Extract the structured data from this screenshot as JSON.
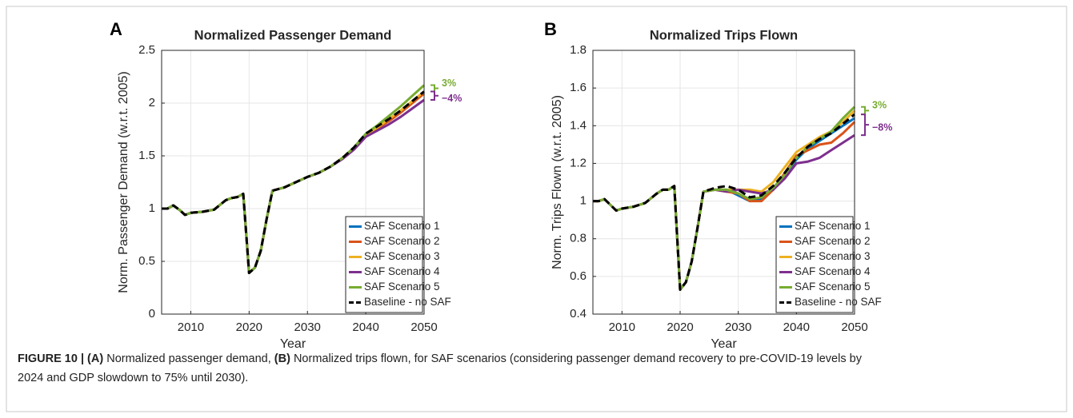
{
  "chart_data": [
    {
      "type": "line",
      "panel": "A",
      "title": "Normalized Passenger Demand",
      "xlabel": "Year",
      "ylabel": "Norm. Passenger Demand (w.r.t. 2005)",
      "x": [
        2005,
        2006,
        2007,
        2008,
        2009,
        2010,
        2012,
        2014,
        2016,
        2017,
        2018,
        2019,
        2020,
        2021,
        2022,
        2023,
        2024,
        2026,
        2028,
        2030,
        2032,
        2034,
        2036,
        2038,
        2040,
        2042,
        2044,
        2046,
        2048,
        2050
      ],
      "xlim": [
        2005,
        2050
      ],
      "xticks": [
        2010,
        2020,
        2030,
        2040,
        2050
      ],
      "ylim": [
        0,
        2.5
      ],
      "yticks": [
        0,
        0.5,
        1,
        1.5,
        2,
        2.5
      ],
      "grid": true,
      "legend": "lower right",
      "series": [
        {
          "name": "SAF Scenario 1",
          "color": "#0072bd",
          "values": [
            1.0,
            1.0,
            1.03,
            0.99,
            0.94,
            0.96,
            0.97,
            0.99,
            1.08,
            1.1,
            1.11,
            1.14,
            0.39,
            0.44,
            0.6,
            0.9,
            1.17,
            1.2,
            1.25,
            1.3,
            1.34,
            1.4,
            1.48,
            1.57,
            1.7,
            1.77,
            1.84,
            1.92,
            2.01,
            2.1
          ]
        },
        {
          "name": "SAF Scenario 2",
          "color": "#d95319",
          "values": [
            1.0,
            1.0,
            1.03,
            0.99,
            0.94,
            0.96,
            0.97,
            0.99,
            1.08,
            1.1,
            1.11,
            1.14,
            0.39,
            0.44,
            0.6,
            0.9,
            1.17,
            1.2,
            1.25,
            1.3,
            1.34,
            1.4,
            1.48,
            1.57,
            1.69,
            1.76,
            1.83,
            1.91,
            2.0,
            2.09
          ]
        },
        {
          "name": "SAF Scenario 3",
          "color": "#edb120",
          "values": [
            1.0,
            1.0,
            1.03,
            0.99,
            0.94,
            0.96,
            0.97,
            0.99,
            1.08,
            1.1,
            1.11,
            1.14,
            0.39,
            0.44,
            0.6,
            0.9,
            1.17,
            1.2,
            1.25,
            1.3,
            1.34,
            1.4,
            1.48,
            1.57,
            1.7,
            1.77,
            1.85,
            1.93,
            2.02,
            2.11
          ]
        },
        {
          "name": "SAF Scenario 4",
          "color": "#7e2f8e",
          "values": [
            1.0,
            1.0,
            1.03,
            0.99,
            0.94,
            0.96,
            0.97,
            0.99,
            1.08,
            1.1,
            1.11,
            1.14,
            0.39,
            0.44,
            0.6,
            0.9,
            1.17,
            1.2,
            1.25,
            1.3,
            1.34,
            1.4,
            1.47,
            1.56,
            1.68,
            1.74,
            1.8,
            1.87,
            1.95,
            2.03
          ]
        },
        {
          "name": "SAF Scenario 5",
          "color": "#77ac30",
          "values": [
            1.0,
            1.0,
            1.03,
            0.99,
            0.94,
            0.96,
            0.97,
            0.99,
            1.08,
            1.1,
            1.11,
            1.14,
            0.39,
            0.44,
            0.6,
            0.9,
            1.17,
            1.2,
            1.25,
            1.3,
            1.34,
            1.4,
            1.48,
            1.58,
            1.71,
            1.79,
            1.88,
            1.97,
            2.07,
            2.17
          ]
        },
        {
          "name": "Baseline - no SAF",
          "color": "#000000",
          "dashed": true,
          "values": [
            1.0,
            1.0,
            1.03,
            0.99,
            0.94,
            0.96,
            0.97,
            0.99,
            1.08,
            1.1,
            1.11,
            1.14,
            0.39,
            0.44,
            0.6,
            0.9,
            1.17,
            1.2,
            1.25,
            1.3,
            1.34,
            1.4,
            1.48,
            1.58,
            1.71,
            1.78,
            1.85,
            1.93,
            2.02,
            2.11
          ]
        }
      ],
      "annotations": [
        {
          "text": "3%",
          "color": "#77ac30"
        },
        {
          "text": "−4%",
          "color": "#7e2f8e"
        }
      ]
    },
    {
      "type": "line",
      "panel": "B",
      "title": "Normalized Trips Flown",
      "xlabel": "Year",
      "ylabel": "Norm. Trips Flown (w.r.t. 2005)",
      "x": [
        2005,
        2006,
        2007,
        2008,
        2009,
        2010,
        2012,
        2014,
        2016,
        2017,
        2018,
        2019,
        2020,
        2021,
        2022,
        2023,
        2024,
        2026,
        2028,
        2030,
        2032,
        2034,
        2036,
        2038,
        2040,
        2042,
        2044,
        2046,
        2048,
        2050
      ],
      "xlim": [
        2005,
        2050
      ],
      "xticks": [
        2010,
        2020,
        2030,
        2040,
        2050
      ],
      "ylim": [
        0.4,
        1.8
      ],
      "yticks": [
        0.4,
        0.6,
        0.8,
        1,
        1.2,
        1.4,
        1.6,
        1.8
      ],
      "grid": true,
      "legend": "lower right",
      "series": [
        {
          "name": "SAF Scenario 1",
          "color": "#0072bd",
          "values": [
            1.0,
            1.0,
            1.01,
            0.98,
            0.95,
            0.96,
            0.97,
            0.99,
            1.04,
            1.06,
            1.06,
            1.08,
            0.53,
            0.57,
            0.68,
            0.86,
            1.05,
            1.06,
            1.06,
            1.03,
            1.0,
            1.01,
            1.07,
            1.14,
            1.22,
            1.28,
            1.32,
            1.36,
            1.4,
            1.44
          ]
        },
        {
          "name": "SAF Scenario 2",
          "color": "#d95319",
          "values": [
            1.0,
            1.0,
            1.01,
            0.98,
            0.95,
            0.96,
            0.97,
            0.99,
            1.04,
            1.06,
            1.06,
            1.08,
            0.53,
            0.57,
            0.68,
            0.86,
            1.05,
            1.06,
            1.05,
            1.04,
            1.0,
            1.0,
            1.06,
            1.15,
            1.24,
            1.27,
            1.3,
            1.31,
            1.36,
            1.42
          ]
        },
        {
          "name": "SAF Scenario 3",
          "color": "#edb120",
          "values": [
            1.0,
            1.0,
            1.01,
            0.98,
            0.95,
            0.96,
            0.97,
            0.99,
            1.04,
            1.06,
            1.06,
            1.08,
            0.53,
            0.57,
            0.68,
            0.86,
            1.05,
            1.06,
            1.06,
            1.06,
            1.06,
            1.05,
            1.1,
            1.18,
            1.26,
            1.3,
            1.34,
            1.37,
            1.42,
            1.48
          ]
        },
        {
          "name": "SAF Scenario 4",
          "color": "#7e2f8e",
          "values": [
            1.0,
            1.0,
            1.01,
            0.98,
            0.95,
            0.96,
            0.97,
            0.99,
            1.04,
            1.06,
            1.06,
            1.08,
            0.53,
            0.57,
            0.68,
            0.86,
            1.05,
            1.06,
            1.05,
            1.06,
            1.05,
            1.04,
            1.06,
            1.12,
            1.2,
            1.21,
            1.23,
            1.27,
            1.31,
            1.35
          ]
        },
        {
          "name": "SAF Scenario 5",
          "color": "#77ac30",
          "values": [
            1.0,
            1.0,
            1.01,
            0.98,
            0.95,
            0.96,
            0.97,
            0.99,
            1.04,
            1.06,
            1.06,
            1.08,
            0.53,
            0.57,
            0.68,
            0.86,
            1.05,
            1.06,
            1.06,
            1.04,
            1.01,
            1.02,
            1.07,
            1.14,
            1.23,
            1.29,
            1.33,
            1.37,
            1.44,
            1.5
          ]
        },
        {
          "name": "Baseline - no SAF",
          "color": "#000000",
          "dashed": true,
          "values": [
            1.0,
            1.0,
            1.01,
            0.98,
            0.95,
            0.96,
            0.97,
            0.99,
            1.04,
            1.06,
            1.06,
            1.08,
            0.53,
            0.57,
            0.68,
            0.86,
            1.05,
            1.07,
            1.08,
            1.06,
            1.02,
            1.03,
            1.08,
            1.15,
            1.23,
            1.29,
            1.33,
            1.36,
            1.41,
            1.46
          ]
        }
      ],
      "annotations": [
        {
          "text": "3%",
          "color": "#77ac30"
        },
        {
          "text": "−8%",
          "color": "#7e2f8e"
        }
      ]
    }
  ],
  "caption": [
    {
      "text": "FIGURE 10 | (A)",
      "bold": true
    },
    {
      "text": " Normalized passenger demand, ",
      "bold": false
    },
    {
      "text": "(B)",
      "bold": true
    },
    {
      "text": " Normalized trips flown, for SAF scenarios (considering passenger demand recovery to pre-COVID-19 levels by 2024 and GDP slowdown to 75% until 2030).",
      "bold": false
    }
  ]
}
